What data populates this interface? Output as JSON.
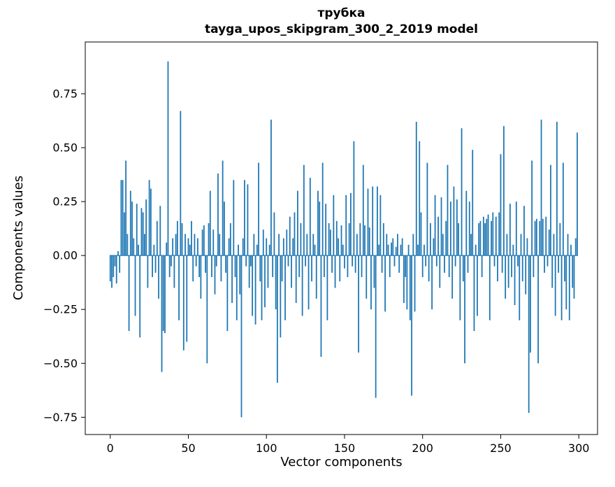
{
  "figure": {
    "title": "трубка",
    "subtitle": "tayga_upos_skipgram_300_2_2019 model",
    "xlabel": "Vector components",
    "ylabel": "Components values"
  },
  "chart_data": {
    "type": "bar",
    "title": "трубка",
    "subtitle": "tayga_upos_skipgram_300_2_2019 model",
    "xlabel": "Vector components",
    "ylabel": "Components values",
    "bar_color": "#1f77b4",
    "bar_width": 0.8,
    "x_start": 0,
    "n_components": 300,
    "xlim": [
      -16,
      312
    ],
    "ylim": [
      -0.83,
      0.99
    ],
    "grid": false,
    "legend": "none",
    "x_ticks": [
      {
        "v": 0,
        "label": "0"
      },
      {
        "v": 50,
        "label": "50"
      },
      {
        "v": 100,
        "label": "100"
      },
      {
        "v": 150,
        "label": "150"
      },
      {
        "v": 200,
        "label": "200"
      },
      {
        "v": 250,
        "label": "250"
      },
      {
        "v": 300,
        "label": "300"
      }
    ],
    "y_ticks": [
      {
        "v": 0.75,
        "label": "0.75"
      },
      {
        "v": 0.5,
        "label": "0.50"
      },
      {
        "v": 0.25,
        "label": "0.25"
      },
      {
        "v": 0.0,
        "label": "0.00"
      },
      {
        "v": -0.25,
        "label": "−0.25"
      },
      {
        "v": -0.5,
        "label": "−0.50"
      },
      {
        "v": -0.75,
        "label": "−0.75"
      }
    ],
    "values": [
      -0.12,
      -0.15,
      -0.1,
      -0.05,
      -0.13,
      0.02,
      -0.08,
      0.35,
      0.35,
      0.2,
      0.44,
      0.1,
      -0.35,
      0.3,
      0.25,
      0.08,
      -0.28,
      0.24,
      0.05,
      -0.38,
      0.22,
      0.2,
      0.1,
      0.26,
      -0.15,
      0.35,
      0.31,
      -0.1,
      0.05,
      -0.08,
      0.16,
      -0.2,
      0.23,
      -0.54,
      -0.35,
      -0.36,
      0.06,
      0.9,
      -0.1,
      -0.05,
      0.08,
      -0.15,
      0.1,
      0.16,
      -0.3,
      0.67,
      0.15,
      -0.44,
      0.1,
      -0.4,
      0.08,
      0.05,
      0.16,
      -0.12,
      0.1,
      -0.05,
      0.08,
      -0.1,
      -0.2,
      0.12,
      0.14,
      -0.08,
      -0.5,
      0.15,
      0.3,
      -0.1,
      0.12,
      -0.18,
      -0.05,
      0.38,
      0.1,
      -0.12,
      0.44,
      0.25,
      -0.08,
      -0.35,
      0.08,
      0.15,
      -0.22,
      0.35,
      -0.1,
      -0.3,
      0.05,
      -0.18,
      -0.75,
      0.08,
      0.35,
      -0.05,
      0.33,
      -0.15,
      -0.05,
      -0.28,
      0.1,
      -0.32,
      0.05,
      0.43,
      -0.12,
      -0.3,
      0.12,
      -0.24,
      0.08,
      -0.15,
      0.05,
      0.63,
      -0.1,
      0.2,
      -0.25,
      -0.59,
      0.1,
      -0.38,
      -0.12,
      0.08,
      -0.3,
      0.12,
      -0.05,
      0.18,
      -0.15,
      0.08,
      0.2,
      -0.22,
      0.3,
      -0.1,
      0.15,
      -0.28,
      0.42,
      -0.05,
      0.1,
      -0.25,
      0.36,
      -0.12,
      0.1,
      0.05,
      -0.2,
      0.3,
      0.25,
      -0.47,
      0.43,
      -0.1,
      0.24,
      -0.3,
      0.15,
      0.12,
      -0.08,
      0.28,
      -0.15,
      0.16,
      0.08,
      -0.12,
      0.14,
      0.05,
      -0.06,
      0.28,
      -0.1,
      0.15,
      0.29,
      -0.05,
      0.53,
      -0.08,
      0.1,
      -0.45,
      0.15,
      -0.1,
      0.42,
      0.14,
      -0.2,
      0.31,
      0.13,
      -0.25,
      0.32,
      -0.15,
      -0.66,
      0.32,
      0.05,
      0.28,
      -0.08,
      0.15,
      -0.26,
      0.1,
      0.05,
      -0.1,
      0.06,
      0.08,
      -0.05,
      0.04,
      0.1,
      -0.08,
      0.05,
      0.08,
      -0.22,
      -0.1,
      -0.25,
      0.05,
      -0.3,
      -0.65,
      0.1,
      -0.26,
      0.62,
      0.05,
      0.53,
      0.2,
      -0.1,
      0.05,
      -0.05,
      0.43,
      -0.12,
      0.15,
      -0.25,
      0.08,
      0.28,
      -0.05,
      0.18,
      -0.15,
      0.27,
      0.1,
      -0.08,
      0.16,
      0.42,
      -0.1,
      0.25,
      -0.2,
      0.32,
      -0.05,
      0.26,
      0.15,
      -0.3,
      0.59,
      -0.12,
      -0.5,
      0.3,
      -0.08,
      0.25,
      0.1,
      0.49,
      -0.35,
      0.05,
      -0.28,
      0.15,
      0.16,
      -0.1,
      0.18,
      0.15,
      0.17,
      0.19,
      -0.3,
      0.16,
      0.2,
      -0.05,
      0.18,
      -0.12,
      0.2,
      0.47,
      -0.08,
      0.6,
      -0.2,
      0.1,
      -0.15,
      0.24,
      -0.1,
      0.05,
      -0.23,
      0.25,
      -0.05,
      -0.3,
      0.1,
      -0.12,
      0.23,
      -0.18,
      0.08,
      -0.73,
      -0.45,
      0.44,
      -0.1,
      0.16,
      0.17,
      -0.5,
      0.16,
      0.63,
      0.17,
      -0.08,
      0.18,
      -0.05,
      0.12,
      0.42,
      -0.15,
      0.1,
      -0.28,
      0.62,
      -0.08,
      0.15,
      -0.3,
      0.43,
      -0.12,
      -0.25,
      0.1,
      -0.3,
      0.05,
      -0.15,
      -0.2,
      0.08,
      0.57
    ]
  }
}
